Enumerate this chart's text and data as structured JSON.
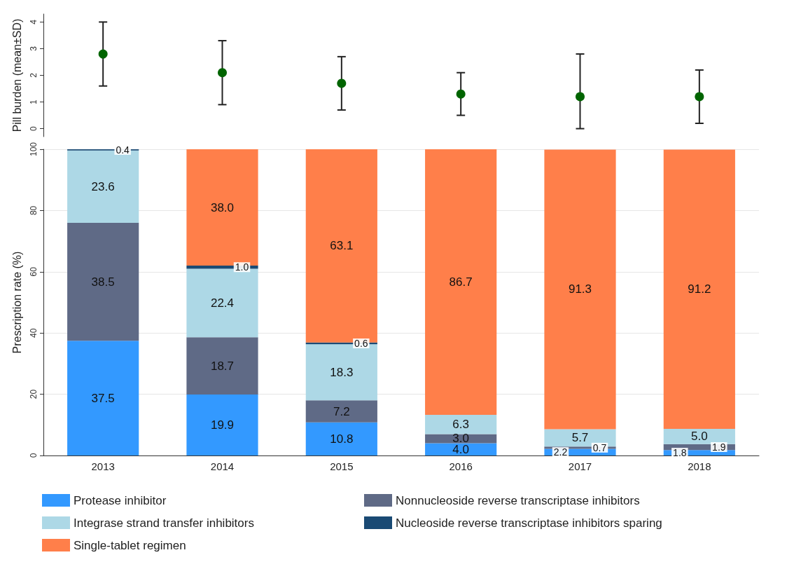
{
  "chart_data": [
    {
      "type": "scatter",
      "ylabel": "Pill burden (mean±SD)",
      "categories": [
        "2013",
        "2014",
        "2015",
        "2016",
        "2017",
        "2018"
      ],
      "ylim": [
        -0.3,
        4.3
      ],
      "yticks": [
        0,
        1,
        2,
        3,
        4
      ],
      "tick_labels": "y",
      "marker": "circle",
      "grid": false,
      "legend": false,
      "series": [
        {
          "color": "#006400",
          "values": [
            2.8,
            2.1,
            1.7,
            1.3,
            1.2,
            1.2
          ],
          "errors": [
            [
              1.6,
              4.0
            ],
            [
              0.9,
              3.3
            ],
            [
              0.7,
              2.7
            ],
            [
              0.5,
              2.1
            ],
            [
              0,
              2.8
            ],
            [
              0.2,
              2.2
            ]
          ]
        }
      ]
    },
    {
      "type": "bar",
      "stacked": true,
      "ylabel": "Prescription rate (%)",
      "categories": [
        "2013",
        "2014",
        "2015",
        "2016",
        "2017",
        "2018"
      ],
      "ylim": [
        0,
        100
      ],
      "yticks": [
        0,
        20,
        40,
        60,
        80,
        100
      ],
      "grid": "y",
      "legend": "bottom",
      "series": [
        {
          "name": "Protease inhibitor",
          "color": "#3399ff",
          "values": [
            37.5,
            19.9,
            10.8,
            4.0,
            2.2,
            1.8
          ],
          "value_labels": [
            "37.5",
            "19.9",
            "10.8",
            "4.0",
            "2.2",
            "1.8"
          ]
        },
        {
          "name": "Nonnucleoside reverse transcriptase inhibitors",
          "color": "#5f6a86",
          "values": [
            38.5,
            18.7,
            7.2,
            3.0,
            0.7,
            1.9
          ],
          "value_labels": [
            "38.5",
            "18.7",
            "7.2",
            "3.0",
            "0.7",
            "1.9"
          ]
        },
        {
          "name": "Integrase strand transfer inhibitors",
          "color": "#add8e6",
          "values": [
            23.6,
            22.4,
            18.3,
            6.3,
            5.7,
            5.0
          ],
          "value_labels": [
            "23.6",
            "22.4",
            "18.3",
            "6.3",
            "5.7",
            "5.0"
          ]
        },
        {
          "name": "Nucleoside reverse transcriptase inhibitors sparing",
          "color": "#1a4a74",
          "values": [
            0.4,
            1.0,
            0.6,
            null,
            null,
            null
          ],
          "value_labels": [
            "0.4",
            "1.0",
            "0.6",
            null,
            null,
            null
          ]
        },
        {
          "name": "Single-tablet regimen",
          "color": "#ff7f4a",
          "values": [
            null,
            38.0,
            63.1,
            86.7,
            91.3,
            91.2
          ],
          "value_labels": [
            null,
            "38.0",
            "63.1",
            "86.7",
            "91.3",
            "91.2"
          ]
        }
      ]
    }
  ]
}
